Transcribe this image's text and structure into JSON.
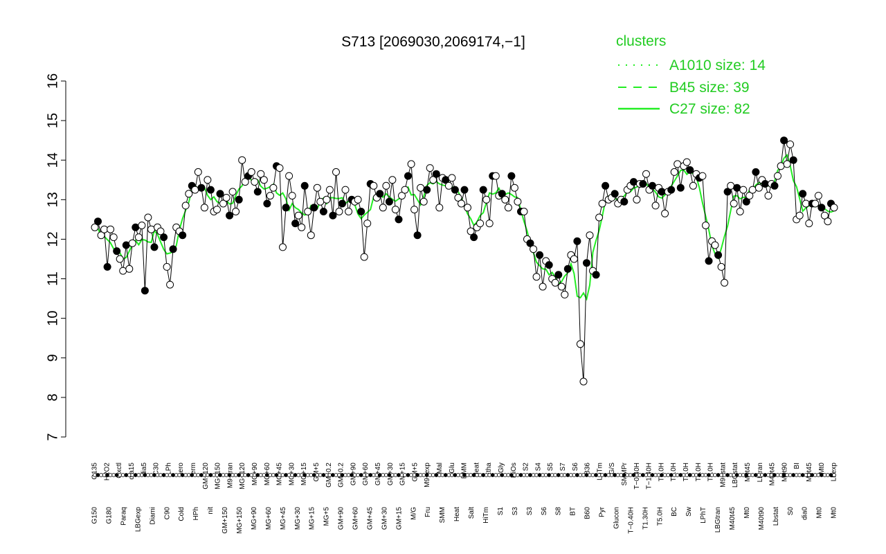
{
  "chart_data": {
    "type": "line",
    "title": "S713 [2069030,2069174,−1]",
    "ylim": [
      7,
      16
    ],
    "yticks": [
      7,
      8,
      9,
      10,
      11,
      12,
      13,
      14,
      15,
      16
    ],
    "grid": false,
    "legend_position": "top-right",
    "legend": {
      "title": "clusters",
      "entries": [
        {
          "label": "A1010 size: 14",
          "style": "dotted"
        },
        {
          "label": "B45 size: 39",
          "style": "dashed"
        },
        {
          "label": "C27 size: 82",
          "style": "solid"
        }
      ]
    },
    "colors": {
      "line": "#22ee22",
      "legend": "#22cc22",
      "point_stroke": "#000000"
    },
    "labels_upper": [
      "G135",
      "H2O2",
      "Oxctl",
      "dia15",
      "dia5",
      "C30",
      "LPh",
      "aero",
      "ferm",
      "GM+120",
      "MG+150",
      "M9−tran",
      "MG+120",
      "MG+90",
      "MG+60",
      "MG+45",
      "MG+30",
      "MG+15",
      "GM+5",
      "GM−0.2",
      "GM−0.2",
      "GM+90",
      "GM+60",
      "GM+45",
      "GM+30",
      "GM+15",
      "GM+5",
      "M9−exp",
      "Mal",
      "Glu",
      "BMM",
      "Heat",
      "Etha",
      "Gly",
      "HiOs",
      "S2",
      "S4",
      "S5",
      "S7",
      "S6",
      "B36",
      "LoTm",
      "G/S",
      "SMMPr",
      "T−0.40H",
      "T−1.40H",
      "T0.0H",
      "T1.0H",
      "T2.0H",
      "T3.0H",
      "T4.0H",
      "M9−stat",
      "LBGstat",
      "M0t45",
      "Lbtran",
      "M40t45",
      "M0t90",
      "BI",
      "M0t45",
      "Mt0",
      "Lbexp"
    ],
    "labels_lower": [
      "G150",
      "G180",
      "Paraq",
      "LBGexp",
      "Diami",
      "C90",
      "Cold",
      "HPh",
      "nit",
      "GM+150",
      "MG+150",
      "MG+90",
      "MG+60",
      "MG+45",
      "MG+30",
      "MG+15",
      "MG+5",
      "GM+90",
      "GM+60",
      "GM+45",
      "GM+30",
      "GM+15",
      "M/G",
      "Fru",
      "SMM",
      "Heat",
      "Salt",
      "HiTm",
      "S1",
      "S3",
      "S3",
      "S6",
      "S8",
      "BT",
      "B60",
      "Pyr",
      "Glucon",
      "T−0.40H",
      "T1.30H",
      "T5.0H",
      "BC",
      "Sw",
      "LPhT",
      "LBGtran",
      "M40t45",
      "Mt0",
      "M40t90",
      "Lbstat",
      "S0",
      "dia0",
      "Mt0",
      "Mt0"
    ],
    "series": [
      {
        "values": [
          12.3,
          12.45,
          12.1,
          12.25,
          11.3,
          12.25,
          12.05,
          11.7,
          11.5,
          11.2,
          11.85,
          11.25,
          11.9,
          12.3,
          12.05,
          12.35,
          10.7,
          12.55,
          12.25,
          11.8,
          12.3,
          12.2,
          12.05,
          11.3,
          10.85,
          11.75,
          12.3,
          12.2,
          12.1,
          12.85,
          13.15,
          13.35,
          13.25,
          13.7,
          13.3,
          12.8,
          13.5,
          13.25,
          12.7,
          12.75,
          13.15,
          12.9,
          13.05,
          12.6,
          13.2,
          12.7,
          13.0,
          14.0,
          13.45,
          13.6,
          13.7,
          13.45,
          13.2,
          13.65,
          13.5,
          12.9,
          13.1,
          13.3,
          13.85,
          13.8,
          11.8,
          12.8,
          13.6,
          13.1,
          12.4,
          12.6,
          12.3,
          13.35,
          12.7,
          12.1,
          12.8,
          13.3,
          12.95,
          12.7,
          13.0,
          13.25,
          12.6,
          13.7,
          12.7,
          12.9,
          13.25,
          12.7,
          13.0,
          12.95,
          13.0,
          12.7,
          11.55,
          12.4,
          13.4,
          13.35,
          13.05,
          13.15,
          12.8,
          13.35,
          12.95,
          13.5,
          12.75,
          12.5,
          13.1,
          13.25,
          13.6,
          13.9,
          12.75,
          12.1,
          13.3,
          12.95,
          13.25,
          13.8,
          13.5,
          13.65,
          12.8,
          13.55,
          13.5,
          13.35,
          13.55,
          13.25,
          13.05,
          12.9,
          13.25,
          12.8,
          12.2,
          12.05,
          12.3,
          12.4,
          13.25,
          13.0,
          12.4,
          13.6,
          13.6,
          13.1,
          13.15,
          13.0,
          12.8,
          13.6,
          13.3,
          12.95,
          12.7,
          12.7,
          12.0,
          11.9,
          11.75,
          11.05,
          11.6,
          10.8,
          11.45,
          11.35,
          11.0,
          10.9,
          11.1,
          10.8,
          10.6,
          11.25,
          11.6,
          11.5,
          11.95,
          9.35,
          8.4,
          11.4,
          12.1,
          11.2,
          11.1,
          12.55,
          12.9,
          13.35,
          13.0,
          13.05,
          13.15,
          12.9,
          13.0,
          12.95,
          13.25,
          13.35,
          13.45,
          13.0,
          13.4,
          13.4,
          13.65,
          13.25,
          13.35,
          12.85,
          13.3,
          13.2,
          12.65,
          13.2,
          13.25,
          13.7,
          13.9,
          13.3,
          13.85,
          13.95,
          13.75,
          13.35,
          13.65,
          13.55,
          13.6,
          12.35,
          11.45,
          11.95,
          11.85,
          11.6,
          11.3,
          10.9,
          13.2,
          13.35,
          12.9,
          13.3,
          12.7,
          13.25,
          12.95,
          13.1,
          13.25,
          13.7,
          13.3,
          13.5,
          13.4,
          13.1,
          13.4,
          13.35,
          13.6,
          13.85,
          14.5,
          13.9,
          14.4,
          14.0,
          12.5,
          12.6,
          13.15,
          12.9,
          12.4,
          12.9,
          12.9,
          13.1,
          12.8,
          12.6,
          12.45,
          12.9,
          12.8
        ]
      }
    ]
  }
}
